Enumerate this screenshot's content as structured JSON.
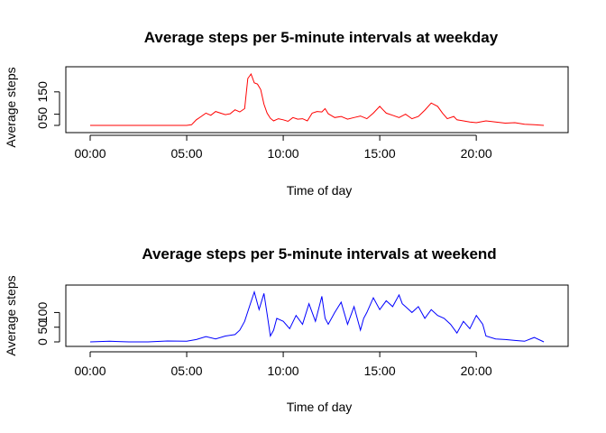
{
  "chart_data": [
    {
      "type": "line",
      "title": "Average steps per 5-minute intervals at weekday",
      "xlabel": "Time of day",
      "ylabel": "Average steps",
      "color": "#ff0000",
      "xlim": [
        "00:00",
        "23:55"
      ],
      "ylim": [
        0,
        230
      ],
      "xticks": [
        "00:00",
        "05:00",
        "10:00",
        "15:00",
        "20:00"
      ],
      "yticks": [
        0,
        50,
        150
      ],
      "grid": false,
      "series": [
        {
          "x": [
            "00:00",
            "01:00",
            "02:00",
            "03:00",
            "04:00",
            "05:00",
            "05:15",
            "05:30",
            "05:45",
            "06:00",
            "06:15",
            "06:30",
            "06:45",
            "07:00",
            "07:15",
            "07:30",
            "07:45",
            "08:00",
            "08:10",
            "08:20",
            "08:30",
            "08:40",
            "08:50",
            "09:00",
            "09:10",
            "09:20",
            "09:30",
            "09:45",
            "10:00",
            "10:15",
            "10:30",
            "10:45",
            "11:00",
            "11:15",
            "11:30",
            "11:45",
            "12:00",
            "12:10",
            "12:20",
            "12:40",
            "13:00",
            "13:20",
            "13:40",
            "14:00",
            "14:20",
            "14:40",
            "15:00",
            "15:10",
            "15:20",
            "15:40",
            "16:00",
            "16:20",
            "16:40",
            "17:00",
            "17:20",
            "17:40",
            "18:00",
            "18:15",
            "18:30",
            "18:50",
            "19:00",
            "19:20",
            "19:40",
            "20:00",
            "20:30",
            "21:00",
            "21:30",
            "22:00",
            "22:30",
            "23:00",
            "23:30"
          ],
          "y": [
            0,
            0,
            0,
            0,
            0,
            0,
            3,
            25,
            40,
            55,
            45,
            62,
            55,
            48,
            52,
            70,
            60,
            75,
            210,
            230,
            190,
            185,
            160,
            95,
            55,
            32,
            20,
            30,
            25,
            18,
            35,
            28,
            30,
            20,
            55,
            62,
            60,
            75,
            52,
            35,
            40,
            28,
            35,
            42,
            30,
            55,
            85,
            70,
            55,
            45,
            35,
            50,
            30,
            40,
            68,
            100,
            85,
            55,
            30,
            40,
            25,
            20,
            15,
            12,
            20,
            15,
            10,
            12,
            5,
            3,
            0
          ]
        }
      ]
    },
    {
      "type": "line",
      "title": "Average steps per 5-minute intervals at weekend",
      "xlabel": "Time of day",
      "ylabel": "Average steps",
      "color": "#0000ff",
      "xlim": [
        "00:00",
        "23:55"
      ],
      "ylim": [
        0,
        175
      ],
      "xticks": [
        "00:00",
        "05:00",
        "10:00",
        "15:00",
        "20:00"
      ],
      "yticks": [
        0,
        50,
        100
      ],
      "grid": false,
      "series": [
        {
          "x": [
            "00:00",
            "01:00",
            "02:00",
            "03:00",
            "04:00",
            "05:00",
            "05:30",
            "06:00",
            "06:30",
            "07:00",
            "07:30",
            "07:45",
            "08:00",
            "08:15",
            "08:30",
            "08:45",
            "09:00",
            "09:10",
            "09:20",
            "09:30",
            "09:40",
            "10:00",
            "10:20",
            "10:40",
            "11:00",
            "11:20",
            "11:40",
            "12:00",
            "12:10",
            "12:20",
            "12:40",
            "13:00",
            "13:20",
            "13:40",
            "14:00",
            "14:10",
            "14:20",
            "14:40",
            "15:00",
            "15:20",
            "15:40",
            "16:00",
            "16:10",
            "16:20",
            "16:40",
            "17:00",
            "17:20",
            "17:40",
            "18:00",
            "18:20",
            "18:40",
            "19:00",
            "19:20",
            "19:40",
            "20:00",
            "20:20",
            "20:30",
            "21:00",
            "21:30",
            "22:00",
            "22:30",
            "23:00",
            "23:30"
          ],
          "y": [
            0,
            2,
            0,
            0,
            3,
            2,
            8,
            18,
            10,
            20,
            25,
            40,
            70,
            120,
            170,
            110,
            165,
            95,
            20,
            40,
            80,
            70,
            45,
            90,
            60,
            130,
            70,
            155,
            80,
            60,
            100,
            135,
            60,
            120,
            40,
            80,
            100,
            150,
            110,
            140,
            120,
            160,
            130,
            120,
            100,
            120,
            80,
            110,
            90,
            80,
            60,
            30,
            70,
            45,
            90,
            60,
            20,
            10,
            8,
            5,
            2,
            15,
            0
          ]
        }
      ]
    }
  ]
}
